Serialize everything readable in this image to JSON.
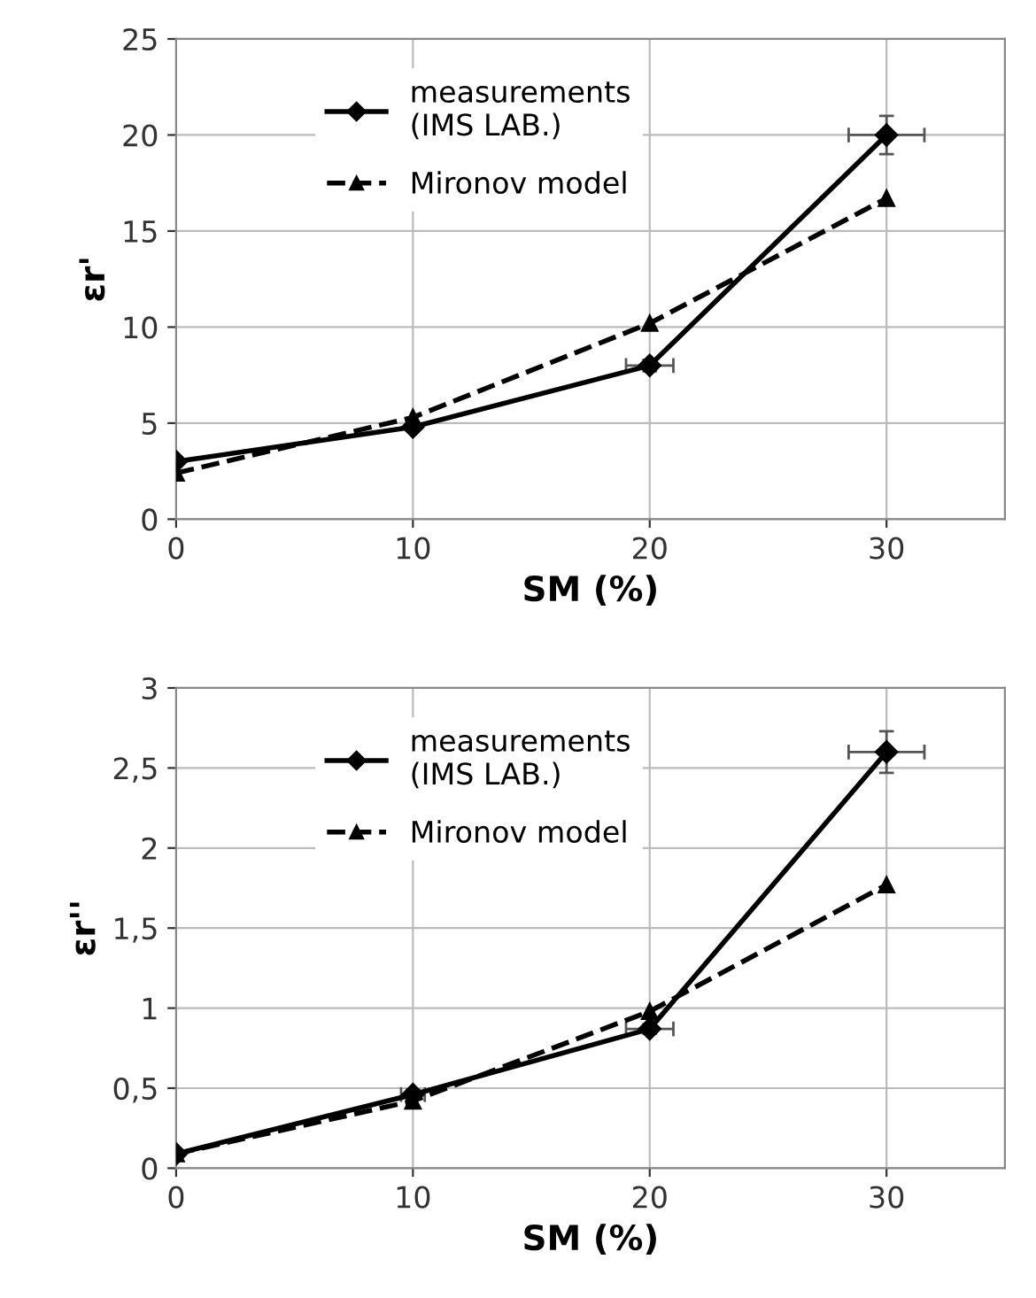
{
  "chart_data": [
    {
      "type": "line",
      "xlabel": "SM (%)",
      "ylabel": "εr'",
      "x": [
        0,
        10,
        20,
        30
      ],
      "xlim": [
        0,
        35
      ],
      "xticks": [
        0,
        10,
        20,
        30
      ],
      "ylim": [
        0,
        25
      ],
      "yticks": [
        0,
        5,
        10,
        15,
        20,
        25
      ],
      "grid": true,
      "legend": "top left",
      "series": [
        {
          "name": "measurements\n(IMS LAB.)",
          "color": "#000000",
          "marker": "diamond",
          "line_style": "solid",
          "values": [
            3,
            4.8,
            8,
            20
          ],
          "errors": [
            null,
            null,
            0.3,
            1
          ],
          "xerrors": [
            null,
            null,
            1,
            1.6
          ]
        },
        {
          "name": "Mironov model",
          "color": "#000000",
          "marker": "triangle",
          "line_style": "dashed",
          "values": [
            2.4,
            5.3,
            10.2,
            16.7
          ]
        }
      ]
    },
    {
      "type": "line",
      "xlabel": "SM (%)",
      "ylabel": "εr''",
      "x": [
        0,
        10,
        20,
        30
      ],
      "xlim": [
        0,
        35
      ],
      "xticks": [
        0,
        10,
        20,
        30
      ],
      "ylim": [
        0,
        3
      ],
      "yticks": [
        0,
        {
          "value": 0.5,
          "label": "0,5"
        },
        1,
        {
          "value": 1.5,
          "label": "1,5"
        },
        2,
        {
          "value": 2.5,
          "label": "2,5"
        },
        3
      ],
      "grid": true,
      "legend": "top left",
      "series": [
        {
          "name": "measurements\n(IMS LAB.)",
          "color": "#000000",
          "marker": "diamond",
          "line_style": "solid",
          "values": [
            0.09,
            0.46,
            0.87,
            2.6
          ],
          "errors": [
            null,
            0.03,
            0.03,
            0.13
          ],
          "xerrors": [
            null,
            0.5,
            1,
            1.6
          ]
        },
        {
          "name": "Mironov model",
          "color": "#000000",
          "marker": "triangle",
          "line_style": "dashed",
          "values": [
            0.09,
            0.42,
            0.98,
            1.77
          ]
        }
      ]
    }
  ]
}
